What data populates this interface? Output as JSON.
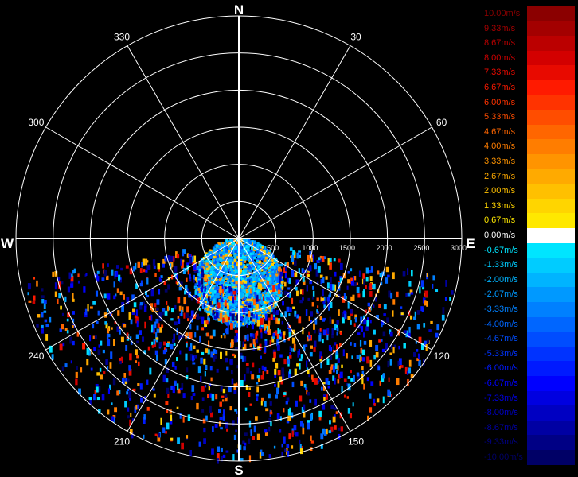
{
  "compass": {
    "north": "N",
    "south": "S",
    "east": "E",
    "west": "W"
  },
  "azimuth_labels": [
    {
      "deg": 30,
      "text": "30"
    },
    {
      "deg": 60,
      "text": "60"
    },
    {
      "deg": 120,
      "text": "120"
    },
    {
      "deg": 150,
      "text": "150"
    },
    {
      "deg": 210,
      "text": "210"
    },
    {
      "deg": 240,
      "text": "240"
    },
    {
      "deg": 300,
      "text": "300"
    },
    {
      "deg": 330,
      "text": "330"
    }
  ],
  "range_labels": [
    "500",
    "1000",
    "1500",
    "2000",
    "2500",
    "3000"
  ],
  "range_max": 3000,
  "legend": [
    {
      "label": "10.00m/s",
      "color": "#8b0000"
    },
    {
      "label": "9.33m/s",
      "color": "#a30000"
    },
    {
      "label": "8.67m/s",
      "color": "#bb0000"
    },
    {
      "label": "8.00m/s",
      "color": "#d30000"
    },
    {
      "label": "7.33m/s",
      "color": "#e80a00"
    },
    {
      "label": "6.67m/s",
      "color": "#ff1a00"
    },
    {
      "label": "6.00m/s",
      "color": "#ff3300"
    },
    {
      "label": "5.33m/s",
      "color": "#ff4d00"
    },
    {
      "label": "4.67m/s",
      "color": "#ff6600"
    },
    {
      "label": "4.00m/s",
      "color": "#ff7d00"
    },
    {
      "label": "3.33m/s",
      "color": "#ff9400"
    },
    {
      "label": "2.67m/s",
      "color": "#ffaa00"
    },
    {
      "label": "2.00m/s",
      "color": "#ffc000"
    },
    {
      "label": "1.33m/s",
      "color": "#ffd500"
    },
    {
      "label": "0.67m/s",
      "color": "#ffe800"
    },
    {
      "label": "0.00m/s",
      "color": "#ffffff"
    },
    {
      "label": "-0.67m/s",
      "color": "#00e5ff"
    },
    {
      "label": "-1.33m/s",
      "color": "#00ccff"
    },
    {
      "label": "-2.00m/s",
      "color": "#00b4ff"
    },
    {
      "label": "-2.67m/s",
      "color": "#0099ff"
    },
    {
      "label": "-3.33m/s",
      "color": "#0080ff"
    },
    {
      "label": "-4.00m/s",
      "color": "#0066ff"
    },
    {
      "label": "-4.67m/s",
      "color": "#004dff"
    },
    {
      "label": "-5.33m/s",
      "color": "#0033ff"
    },
    {
      "label": "-6.00m/s",
      "color": "#001aff"
    },
    {
      "label": "-6.67m/s",
      "color": "#0000ff"
    },
    {
      "label": "-7.33m/s",
      "color": "#0000e0"
    },
    {
      "label": "-8.00m/s",
      "color": "#0000c2"
    },
    {
      "label": "-8.67m/s",
      "color": "#0000a3"
    },
    {
      "label": "-9.33m/s",
      "color": "#000085"
    },
    {
      "label": "-10.00m/s",
      "color": "#000066"
    }
  ],
  "scan_sector": {
    "start_deg": 100,
    "end_deg": 260
  }
}
